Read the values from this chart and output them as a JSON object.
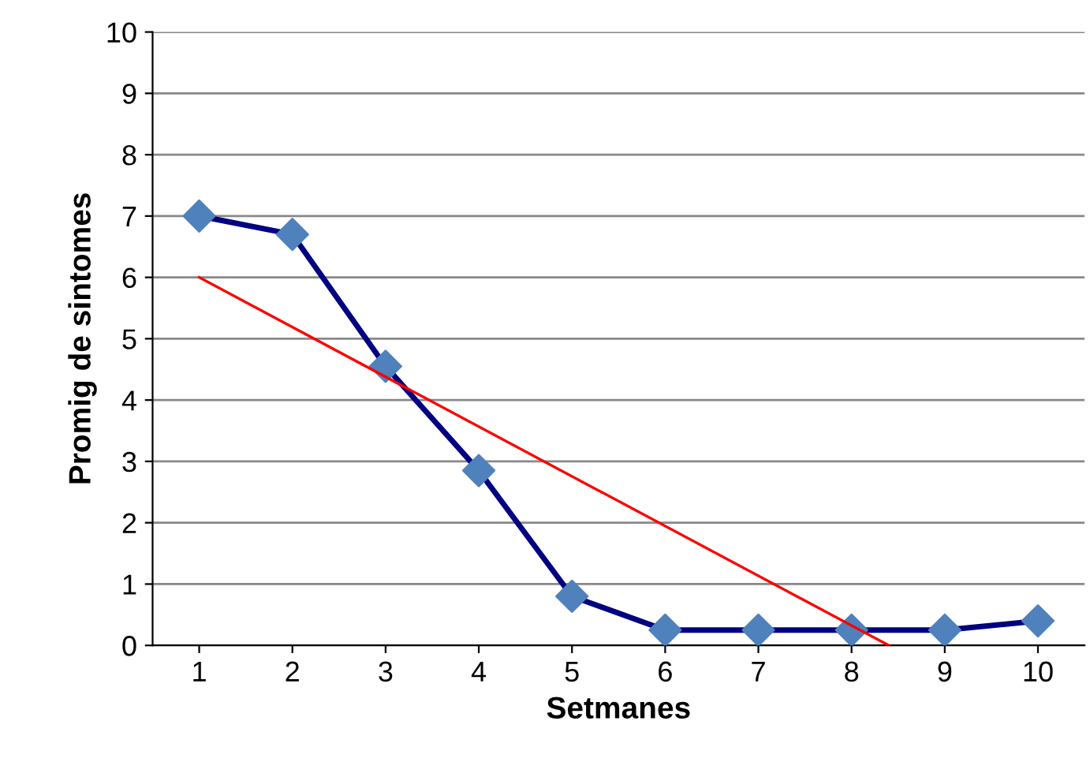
{
  "chart_data": {
    "type": "line",
    "xlabel": "Setmanes",
    "ylabel": "Promig de sintomes",
    "x": [
      1,
      2,
      3,
      4,
      5,
      6,
      7,
      8,
      9,
      10
    ],
    "series": [
      {
        "color": "#000080",
        "values": [
          7,
          6.7,
          4.55,
          2.85,
          0.8,
          0.25,
          0.25,
          0.25,
          0.25,
          0.4
        ],
        "marker": "diamond",
        "colors": [
          "#4f81bd",
          "#4f81bd",
          "#4f81bd",
          "#4f81bd",
          "#4f81bd",
          "#4f81bd",
          "#4f81bd",
          "#4f81bd",
          "#4f81bd",
          "#4f81bd"
        ]
      },
      {
        "color": "#ff0000",
        "x": [
          1,
          8.4
        ],
        "values": [
          6,
          0
        ],
        "marker": "none"
      }
    ],
    "xlim": [
      0.5,
      10.5
    ],
    "xticks": [
      1,
      2,
      3,
      4,
      5,
      6,
      7,
      8,
      9,
      10
    ],
    "ylim": [
      0,
      10
    ],
    "yticks": [
      0,
      1,
      2,
      3,
      4,
      5,
      6,
      7,
      8,
      9,
      10
    ],
    "grid": "y",
    "legend": false
  }
}
